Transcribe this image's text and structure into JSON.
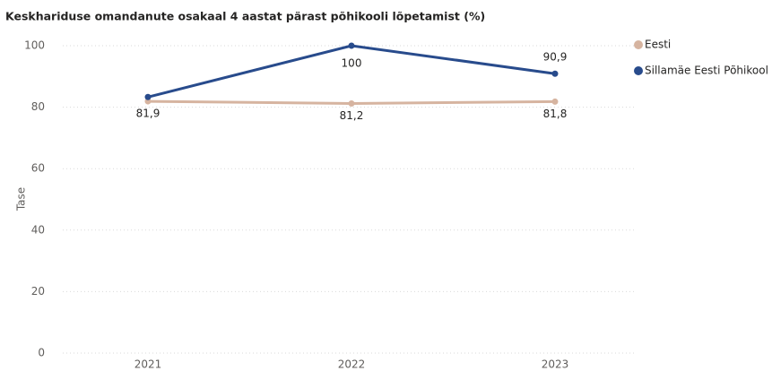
{
  "chart_data": {
    "type": "line",
    "title": "Keskhariduse omandanute osakaal 4 aastat pärast põhikooli lõpetamist (%)",
    "y_label": "Tase",
    "categories": [
      "2021",
      "2022",
      "2023"
    ],
    "series": [
      {
        "name": "Eesti",
        "color": "#d6b4a0",
        "values": [
          81.9,
          81.2,
          81.8
        ],
        "value_labels": [
          "81,9",
          "81,2",
          "81,8"
        ]
      },
      {
        "name": "Sillamäe Eesti Põhikool",
        "color": "#284b8c",
        "values": [
          83.3,
          100,
          90.9
        ],
        "value_labels": [
          null,
          "100",
          "90,9"
        ]
      }
    ],
    "ylim": [
      0,
      100
    ],
    "yticks": [
      0,
      20,
      40,
      60,
      80,
      100
    ],
    "grid": true,
    "legend": "right"
  }
}
